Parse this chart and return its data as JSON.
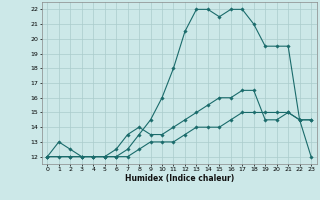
{
  "xlabel": "Humidex (Indice chaleur)",
  "bg_color": "#cce8e8",
  "grid_color": "#aacccc",
  "line_color": "#1a6b6b",
  "xlim": [
    -0.5,
    23.5
  ],
  "ylim": [
    11.5,
    22.5
  ],
  "xticks": [
    0,
    1,
    2,
    3,
    4,
    5,
    6,
    7,
    8,
    9,
    10,
    11,
    12,
    13,
    14,
    15,
    16,
    17,
    18,
    19,
    20,
    21,
    22,
    23
  ],
  "yticks": [
    12,
    13,
    14,
    15,
    16,
    17,
    18,
    19,
    20,
    21,
    22
  ],
  "line1_x": [
    0,
    1,
    2,
    3,
    4,
    5,
    6,
    7,
    8,
    9,
    10,
    11,
    12,
    13,
    14,
    15,
    16,
    17,
    18,
    19,
    20,
    21,
    22,
    23
  ],
  "line1_y": [
    12,
    13,
    12.5,
    12,
    12,
    12,
    12,
    12.5,
    13.5,
    14.5,
    16,
    18,
    20.5,
    22,
    22,
    21.5,
    22,
    22,
    21,
    19.5,
    19.5,
    19.5,
    14.5,
    12
  ],
  "line2_x": [
    0,
    2,
    3,
    4,
    5,
    6,
    7,
    8,
    9,
    10,
    11,
    12,
    13,
    14,
    15,
    16,
    17,
    18,
    19,
    20,
    21,
    22,
    23
  ],
  "line2_y": [
    12,
    12,
    12,
    12,
    12,
    12.5,
    13.5,
    14,
    13.5,
    13.5,
    14,
    14.5,
    15,
    15.5,
    16,
    16,
    16.5,
    16.5,
    14.5,
    14.5,
    15,
    14.5,
    14.5
  ],
  "line3_x": [
    0,
    1,
    2,
    3,
    4,
    5,
    6,
    7,
    8,
    9,
    10,
    11,
    12,
    13,
    14,
    15,
    16,
    17,
    18,
    19,
    20,
    21,
    22,
    23
  ],
  "line3_y": [
    12,
    12,
    12,
    12,
    12,
    12,
    12,
    12,
    12.5,
    13,
    13,
    13,
    13.5,
    14,
    14,
    14,
    14.5,
    15,
    15,
    15,
    15,
    15,
    14.5,
    14.5
  ]
}
